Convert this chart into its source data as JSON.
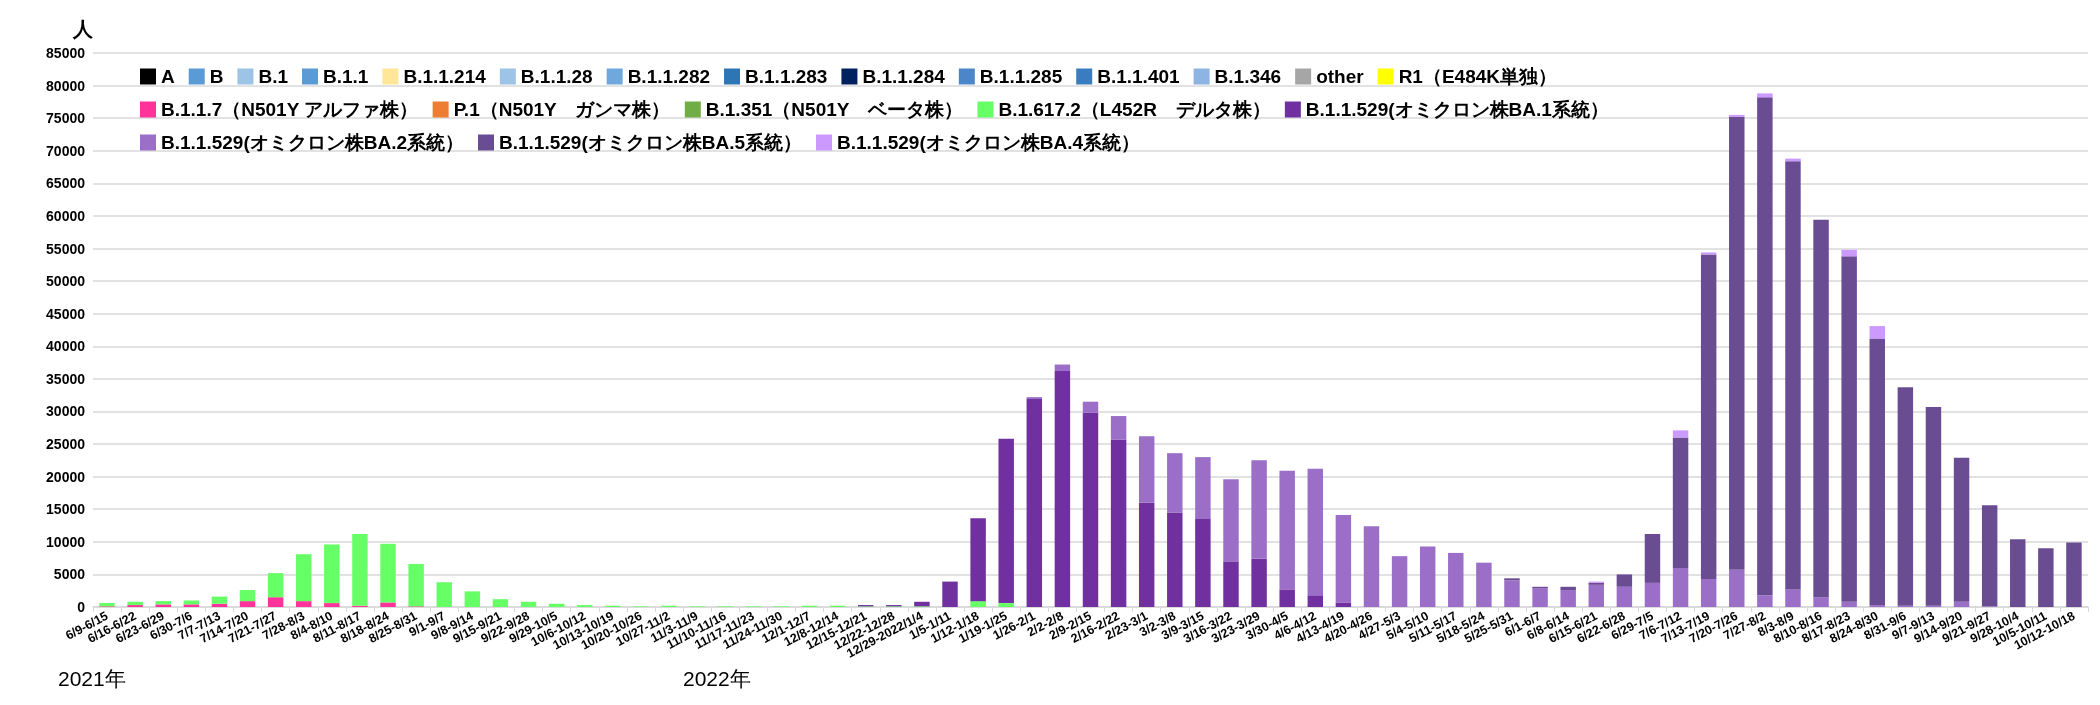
{
  "chart_data": {
    "type": "bar",
    "stacked": true,
    "ylabel": "人",
    "annotations": [
      "2021年",
      "2022年"
    ],
    "categories": [
      "6/9-6/15",
      "6/16-6/22",
      "6/23-6/29",
      "6/30-7/6",
      "7/7-7/13",
      "7/14-7/20",
      "7/21-7/27",
      "7/28-8/3",
      "8/4-8/10",
      "8/11-8/17",
      "8/18-8/24",
      "8/25-8/31",
      "9/1-9/7",
      "9/8-9/14",
      "9/15-9/21",
      "9/22-9/28",
      "9/29-10/5",
      "10/6-10/12",
      "10/13-10/19",
      "10/20-10/26",
      "10/27-11/2",
      "11/3-11/9",
      "11/10-11/16",
      "11/17-11/23",
      "11/24-11/30",
      "12/1-12/7",
      "12/8-12/14",
      "12/15-12/21",
      "12/22-12/28",
      "12/29-2022/1/4",
      "1/5-1/11",
      "1/12-1/18",
      "1/19-1/25",
      "1/26-2/1",
      "2/2-2/8",
      "2/9-2/15",
      "2/16-2/22",
      "2/23-3/1",
      "3/2-3/8",
      "3/9-3/15",
      "3/16-3/22",
      "3/23-3/29",
      "3/30-4/5",
      "4/6-4/12",
      "4/13-4/19",
      "4/20-4/26",
      "4/27-5/3",
      "5/4-5/10",
      "5/11-5/17",
      "5/18-5/24",
      "5/25-5/31",
      "6/1-6/7",
      "6/8-6/14",
      "6/15-6/21",
      "6/22-6/28",
      "6/29-7/5",
      "7/6-7/12",
      "7/13-7/19",
      "7/20-7/26",
      "7/27-8/2",
      "8/3-8/9",
      "8/10-8/16",
      "8/17-8/23",
      "8/24-8/30",
      "8/31-9/6",
      "9/7-9/13",
      "9/14-9/20",
      "9/21-9/27",
      "9/28-10/4",
      "10/5-10/11",
      "10/12-10/18"
    ],
    "ylim": [
      0,
      85000
    ],
    "yticks": [
      0,
      5000,
      10000,
      15000,
      20000,
      25000,
      30000,
      35000,
      40000,
      45000,
      50000,
      55000,
      60000,
      65000,
      70000,
      75000,
      80000,
      85000
    ],
    "grid": "y",
    "legend": "top left",
    "series": [
      {
        "name": "A",
        "color": "#000000",
        "values": [
          0,
          0,
          0,
          0,
          0,
          0,
          0,
          0,
          0,
          0,
          0,
          0,
          0,
          0,
          0,
          0,
          0,
          0,
          0,
          0,
          0,
          0,
          0,
          0,
          0,
          0,
          0,
          0,
          0,
          0,
          0,
          0,
          0,
          0,
          0,
          0,
          0,
          0,
          0,
          0,
          0,
          0,
          0,
          0,
          0,
          0,
          0,
          0,
          0,
          0,
          0,
          0,
          0,
          0,
          0,
          0,
          0,
          0,
          0,
          0,
          0,
          0,
          0,
          0,
          0,
          0,
          0,
          0,
          0,
          0,
          0
        ]
      },
      {
        "name": "B",
        "color": "#5b9bd5",
        "values": [
          0,
          0,
          0,
          0,
          0,
          0,
          0,
          0,
          0,
          0,
          0,
          0,
          0,
          0,
          0,
          0,
          0,
          0,
          0,
          0,
          0,
          0,
          0,
          0,
          0,
          0,
          0,
          0,
          0,
          0,
          0,
          0,
          0,
          0,
          0,
          0,
          0,
          0,
          0,
          0,
          0,
          0,
          0,
          0,
          0,
          0,
          0,
          0,
          0,
          0,
          0,
          0,
          0,
          0,
          0,
          0,
          0,
          0,
          0,
          0,
          0,
          0,
          0,
          0,
          0,
          0,
          0,
          0,
          0,
          0,
          0
        ]
      },
      {
        "name": "B.1",
        "color": "#9dc3e6",
        "values": [
          0,
          0,
          0,
          0,
          0,
          0,
          0,
          0,
          0,
          0,
          0,
          0,
          0,
          0,
          0,
          0,
          0,
          0,
          0,
          0,
          0,
          0,
          0,
          0,
          0,
          0,
          0,
          0,
          0,
          0,
          0,
          0,
          0,
          0,
          0,
          0,
          0,
          0,
          0,
          0,
          0,
          0,
          0,
          0,
          0,
          0,
          0,
          0,
          0,
          0,
          0,
          0,
          0,
          0,
          0,
          0,
          0,
          0,
          0,
          0,
          0,
          0,
          0,
          0,
          0,
          0,
          0,
          0,
          0,
          0,
          0
        ]
      },
      {
        "name": "B.1.1",
        "color": "#5b9bd5",
        "values": [
          0,
          0,
          0,
          0,
          0,
          0,
          0,
          0,
          0,
          0,
          0,
          0,
          0,
          0,
          0,
          0,
          0,
          0,
          0,
          0,
          0,
          0,
          0,
          0,
          0,
          0,
          0,
          0,
          0,
          0,
          0,
          0,
          0,
          0,
          0,
          0,
          0,
          0,
          0,
          0,
          0,
          0,
          0,
          0,
          0,
          0,
          0,
          0,
          0,
          0,
          0,
          0,
          0,
          0,
          0,
          0,
          0,
          0,
          0,
          0,
          0,
          0,
          0,
          0,
          0,
          0,
          0,
          0,
          0,
          0,
          0
        ]
      },
      {
        "name": "B.1.1.214",
        "color": "#ffe699",
        "values": [
          0,
          0,
          0,
          0,
          0,
          0,
          0,
          0,
          0,
          0,
          0,
          0,
          0,
          0,
          0,
          0,
          0,
          0,
          0,
          0,
          0,
          0,
          0,
          0,
          0,
          0,
          0,
          0,
          0,
          0,
          0,
          0,
          0,
          0,
          0,
          0,
          0,
          0,
          0,
          0,
          0,
          0,
          0,
          0,
          0,
          0,
          0,
          0,
          0,
          0,
          0,
          0,
          0,
          0,
          0,
          0,
          0,
          0,
          0,
          0,
          0,
          0,
          0,
          0,
          0,
          0,
          0,
          0,
          0,
          0,
          0
        ]
      },
      {
        "name": "B.1.1.28",
        "color": "#9dc3e6",
        "values": [
          0,
          0,
          0,
          0,
          0,
          0,
          0,
          0,
          0,
          0,
          0,
          0,
          0,
          0,
          0,
          0,
          0,
          0,
          0,
          0,
          0,
          0,
          0,
          0,
          0,
          0,
          0,
          0,
          0,
          0,
          0,
          0,
          0,
          0,
          0,
          0,
          0,
          0,
          0,
          0,
          0,
          0,
          0,
          0,
          0,
          0,
          0,
          0,
          0,
          0,
          0,
          0,
          0,
          0,
          0,
          0,
          0,
          0,
          0,
          0,
          0,
          0,
          0,
          0,
          0,
          0,
          0,
          0,
          0,
          0,
          0
        ]
      },
      {
        "name": "B.1.1.282",
        "color": "#6fa8dc",
        "values": [
          0,
          0,
          0,
          0,
          0,
          0,
          0,
          0,
          0,
          0,
          0,
          0,
          0,
          0,
          0,
          0,
          0,
          0,
          0,
          0,
          0,
          0,
          0,
          0,
          0,
          0,
          0,
          0,
          0,
          0,
          0,
          0,
          0,
          0,
          0,
          0,
          0,
          0,
          0,
          0,
          0,
          0,
          0,
          0,
          0,
          0,
          0,
          0,
          0,
          0,
          0,
          0,
          0,
          0,
          0,
          0,
          0,
          0,
          0,
          0,
          0,
          0,
          0,
          0,
          0,
          0,
          0,
          0,
          0,
          0,
          0
        ]
      },
      {
        "name": "B.1.1.283",
        "color": "#2e75b6",
        "values": [
          0,
          0,
          0,
          0,
          0,
          0,
          0,
          0,
          0,
          0,
          0,
          0,
          0,
          0,
          0,
          0,
          0,
          0,
          0,
          0,
          0,
          0,
          0,
          0,
          0,
          0,
          0,
          0,
          0,
          0,
          0,
          0,
          0,
          0,
          0,
          0,
          0,
          0,
          0,
          0,
          0,
          0,
          0,
          0,
          0,
          0,
          0,
          0,
          0,
          0,
          0,
          0,
          0,
          0,
          0,
          0,
          0,
          0,
          0,
          0,
          0,
          0,
          0,
          0,
          0,
          0,
          0,
          0,
          0,
          0,
          0
        ]
      },
      {
        "name": "B.1.1.284",
        "color": "#002060",
        "values": [
          0,
          0,
          0,
          0,
          0,
          0,
          0,
          0,
          0,
          0,
          0,
          0,
          0,
          0,
          0,
          0,
          0,
          0,
          0,
          0,
          0,
          0,
          0,
          0,
          0,
          0,
          0,
          0,
          0,
          0,
          0,
          0,
          0,
          0,
          0,
          0,
          0,
          0,
          0,
          0,
          0,
          0,
          0,
          0,
          0,
          0,
          0,
          0,
          0,
          0,
          0,
          0,
          0,
          0,
          0,
          0,
          0,
          0,
          0,
          0,
          0,
          0,
          0,
          0,
          0,
          0,
          0,
          0,
          0,
          0,
          0
        ]
      },
      {
        "name": "B.1.1.285",
        "color": "#4a86c8",
        "values": [
          0,
          0,
          0,
          0,
          0,
          0,
          0,
          0,
          0,
          0,
          0,
          0,
          0,
          0,
          0,
          0,
          0,
          0,
          0,
          0,
          0,
          0,
          0,
          0,
          0,
          0,
          0,
          0,
          0,
          0,
          0,
          0,
          0,
          0,
          0,
          0,
          0,
          0,
          0,
          0,
          0,
          0,
          0,
          0,
          0,
          0,
          0,
          0,
          0,
          0,
          0,
          0,
          0,
          0,
          0,
          0,
          0,
          0,
          0,
          0,
          0,
          0,
          0,
          0,
          0,
          0,
          0,
          0,
          0,
          0,
          0
        ]
      },
      {
        "name": "B.1.1.401",
        "color": "#3a7cc0",
        "values": [
          0,
          0,
          0,
          0,
          0,
          0,
          0,
          0,
          0,
          0,
          0,
          0,
          0,
          0,
          0,
          0,
          0,
          0,
          0,
          0,
          0,
          0,
          0,
          0,
          0,
          0,
          0,
          0,
          0,
          0,
          0,
          0,
          0,
          0,
          0,
          0,
          0,
          0,
          0,
          0,
          0,
          0,
          0,
          0,
          0,
          0,
          0,
          0,
          0,
          0,
          0,
          0,
          0,
          0,
          0,
          0,
          0,
          0,
          0,
          0,
          0,
          0,
          0,
          0,
          0,
          0,
          0,
          0,
          0,
          0,
          0
        ]
      },
      {
        "name": "B.1.346",
        "color": "#8db4e2",
        "values": [
          0,
          0,
          0,
          0,
          0,
          0,
          0,
          0,
          0,
          0,
          0,
          0,
          0,
          0,
          0,
          0,
          0,
          0,
          0,
          0,
          0,
          0,
          0,
          0,
          0,
          0,
          0,
          0,
          0,
          0,
          0,
          0,
          0,
          0,
          0,
          0,
          0,
          0,
          0,
          0,
          0,
          0,
          0,
          0,
          0,
          0,
          0,
          0,
          0,
          0,
          0,
          0,
          0,
          0,
          0,
          0,
          0,
          0,
          0,
          0,
          0,
          0,
          0,
          0,
          0,
          0,
          0,
          0,
          0,
          0,
          0
        ]
      },
      {
        "name": "other",
        "color": "#a6a6a6",
        "values": [
          0,
          0,
          0,
          0,
          0,
          0,
          0,
          0,
          0,
          0,
          0,
          0,
          0,
          0,
          0,
          0,
          0,
          0,
          0,
          0,
          0,
          0,
          0,
          0,
          0,
          0,
          0,
          0,
          0,
          0,
          0,
          0,
          0,
          0,
          0,
          0,
          0,
          0,
          0,
          0,
          0,
          0,
          0,
          0,
          0,
          0,
          0,
          0,
          0,
          0,
          0,
          0,
          0,
          0,
          0,
          0,
          0,
          0,
          0,
          0,
          0,
          0,
          0,
          0,
          0,
          0,
          0,
          0,
          0,
          0,
          0
        ]
      },
      {
        "name": "R1（E484K単独）",
        "color": "#ffff00",
        "values": [
          0,
          0,
          0,
          0,
          0,
          0,
          0,
          0,
          0,
          0,
          0,
          0,
          0,
          0,
          0,
          0,
          0,
          0,
          0,
          0,
          0,
          0,
          0,
          0,
          0,
          0,
          0,
          0,
          0,
          0,
          0,
          0,
          0,
          0,
          0,
          0,
          0,
          0,
          0,
          0,
          0,
          0,
          0,
          0,
          0,
          0,
          0,
          0,
          0,
          0,
          0,
          0,
          0,
          0,
          0,
          0,
          0,
          0,
          0,
          0,
          0,
          0,
          0,
          0,
          0,
          0,
          0,
          0,
          0,
          0,
          0
        ]
      },
      {
        "name": "B.1.1.7（N501Y アルファ株）",
        "color": "#ff3399",
        "values": [
          100,
          300,
          400,
          400,
          500,
          900,
          1500,
          900,
          600,
          200,
          700,
          100,
          0,
          0,
          0,
          0,
          0,
          0,
          0,
          0,
          0,
          0,
          0,
          0,
          0,
          0,
          0,
          0,
          0,
          0,
          0,
          0,
          0,
          0,
          0,
          0,
          0,
          0,
          0,
          0,
          0,
          0,
          0,
          0,
          0,
          0,
          0,
          0,
          0,
          0,
          0,
          0,
          0,
          0,
          0,
          0,
          0,
          0,
          0,
          0,
          0,
          0,
          0,
          0,
          0,
          0,
          0,
          0,
          0,
          0,
          0
        ]
      },
      {
        "name": "P.1（N501Y　ガンマ株）",
        "color": "#ed7d31",
        "values": [
          0,
          0,
          0,
          0,
          0,
          0,
          0,
          0,
          0,
          0,
          0,
          0,
          0,
          0,
          0,
          0,
          0,
          0,
          0,
          0,
          0,
          0,
          0,
          0,
          0,
          0,
          0,
          0,
          0,
          0,
          0,
          0,
          0,
          0,
          0,
          0,
          0,
          0,
          0,
          0,
          0,
          0,
          0,
          0,
          0,
          0,
          0,
          0,
          0,
          0,
          0,
          0,
          0,
          0,
          0,
          0,
          0,
          0,
          0,
          0,
          0,
          0,
          0,
          0,
          0,
          0,
          0,
          0,
          0,
          0,
          0
        ]
      },
      {
        "name": "B.1.351（N501Y　ベータ株）",
        "color": "#70ad47",
        "values": [
          0,
          0,
          0,
          0,
          0,
          0,
          0,
          0,
          0,
          0,
          0,
          0,
          0,
          0,
          0,
          0,
          0,
          0,
          0,
          0,
          0,
          0,
          0,
          0,
          0,
          0,
          0,
          0,
          0,
          0,
          0,
          0,
          0,
          0,
          0,
          0,
          0,
          0,
          0,
          0,
          0,
          0,
          0,
          0,
          0,
          0,
          0,
          0,
          0,
          0,
          0,
          0,
          0,
          0,
          0,
          0,
          0,
          0,
          0,
          0,
          0,
          0,
          0,
          0,
          0,
          0,
          0,
          0,
          0,
          0,
          0
        ]
      },
      {
        "name": "B.1.617.2（L452R　デルタ株）",
        "color": "#66ff66",
        "values": [
          500,
          500,
          500,
          600,
          1100,
          1700,
          3700,
          7200,
          9000,
          11000,
          9000,
          6500,
          3800,
          2400,
          1200,
          800,
          500,
          300,
          200,
          100,
          200,
          100,
          100,
          100,
          100,
          200,
          200,
          100,
          100,
          100,
          0,
          900,
          600,
          0,
          0,
          0,
          0,
          0,
          0,
          0,
          0,
          0,
          0,
          0,
          0,
          0,
          0,
          0,
          0,
          0,
          0,
          0,
          0,
          0,
          0,
          0,
          0,
          0,
          0,
          0,
          0,
          0,
          0,
          0,
          0,
          0,
          0,
          0,
          0,
          0,
          0
        ]
      },
      {
        "name": "B.1.1.529(オミクロン株BA.1系統）",
        "color": "#7030a0",
        "values": [
          0,
          0,
          0,
          0,
          0,
          0,
          0,
          0,
          0,
          0,
          0,
          0,
          0,
          0,
          0,
          0,
          0,
          0,
          0,
          0,
          0,
          0,
          0,
          0,
          0,
          0,
          0,
          200,
          200,
          700,
          3900,
          12700,
          25200,
          31900,
          36200,
          29800,
          25700,
          16000,
          14500,
          13500,
          7000,
          7400,
          2700,
          1800,
          700,
          0,
          0,
          0,
          0,
          0,
          0,
          0,
          0,
          0,
          0,
          0,
          0,
          0,
          0,
          0,
          0,
          0,
          0,
          0,
          0,
          0,
          0,
          0,
          0,
          0,
          0
        ]
      },
      {
        "name": "B.1.1.529(オミクロン株BA.2系統）",
        "color": "#9b6fc7",
        "values": [
          0,
          0,
          0,
          0,
          0,
          0,
          0,
          0,
          0,
          0,
          0,
          0,
          0,
          0,
          0,
          0,
          0,
          0,
          0,
          0,
          0,
          0,
          0,
          0,
          0,
          0,
          0,
          0,
          0,
          0,
          0,
          0,
          0,
          300,
          1000,
          1700,
          3600,
          10200,
          9100,
          9500,
          12600,
          15100,
          18200,
          19400,
          13400,
          12400,
          7800,
          9300,
          8300,
          6800,
          4100,
          2900,
          2600,
          3400,
          3100,
          3700,
          6000,
          4300,
          5700,
          1800,
          2700,
          1500,
          800,
          300,
          200,
          200,
          800,
          100,
          0,
          0,
          0
        ]
      },
      {
        "name": "B.1.1.529(オミクロン株BA.5系統）",
        "color": "#6a4c93",
        "values": [
          0,
          0,
          0,
          0,
          0,
          0,
          0,
          0,
          0,
          0,
          0,
          0,
          0,
          0,
          0,
          0,
          0,
          0,
          0,
          0,
          0,
          0,
          0,
          0,
          0,
          0,
          0,
          0,
          0,
          0,
          0,
          0,
          0,
          0,
          0,
          0,
          0,
          0,
          0,
          0,
          0,
          0,
          0,
          0,
          0,
          0,
          0,
          0,
          0,
          0,
          300,
          200,
          500,
          300,
          1900,
          7500,
          20000,
          49800,
          69500,
          76400,
          65700,
          57900,
          53000,
          40900,
          33500,
          30500,
          22100,
          15500,
          10400,
          9000,
          9900
        ]
      },
      {
        "name": "B.1.1.529(オミクロン株BA.4系統）",
        "color": "#cc99ff",
        "values": [
          0,
          0,
          0,
          0,
          0,
          0,
          0,
          0,
          0,
          0,
          0,
          0,
          0,
          0,
          0,
          0,
          0,
          0,
          0,
          0,
          0,
          0,
          0,
          0,
          0,
          0,
          0,
          0,
          0,
          0,
          0,
          0,
          0,
          0,
          0,
          0,
          0,
          0,
          0,
          0,
          0,
          0,
          0,
          0,
          0,
          0,
          0,
          0,
          0,
          0,
          0,
          0,
          0,
          200,
          0,
          0,
          1100,
          300,
          300,
          600,
          400,
          0,
          1000,
          1900,
          0,
          0,
          0,
          0,
          0,
          0,
          0
        ]
      }
    ]
  }
}
